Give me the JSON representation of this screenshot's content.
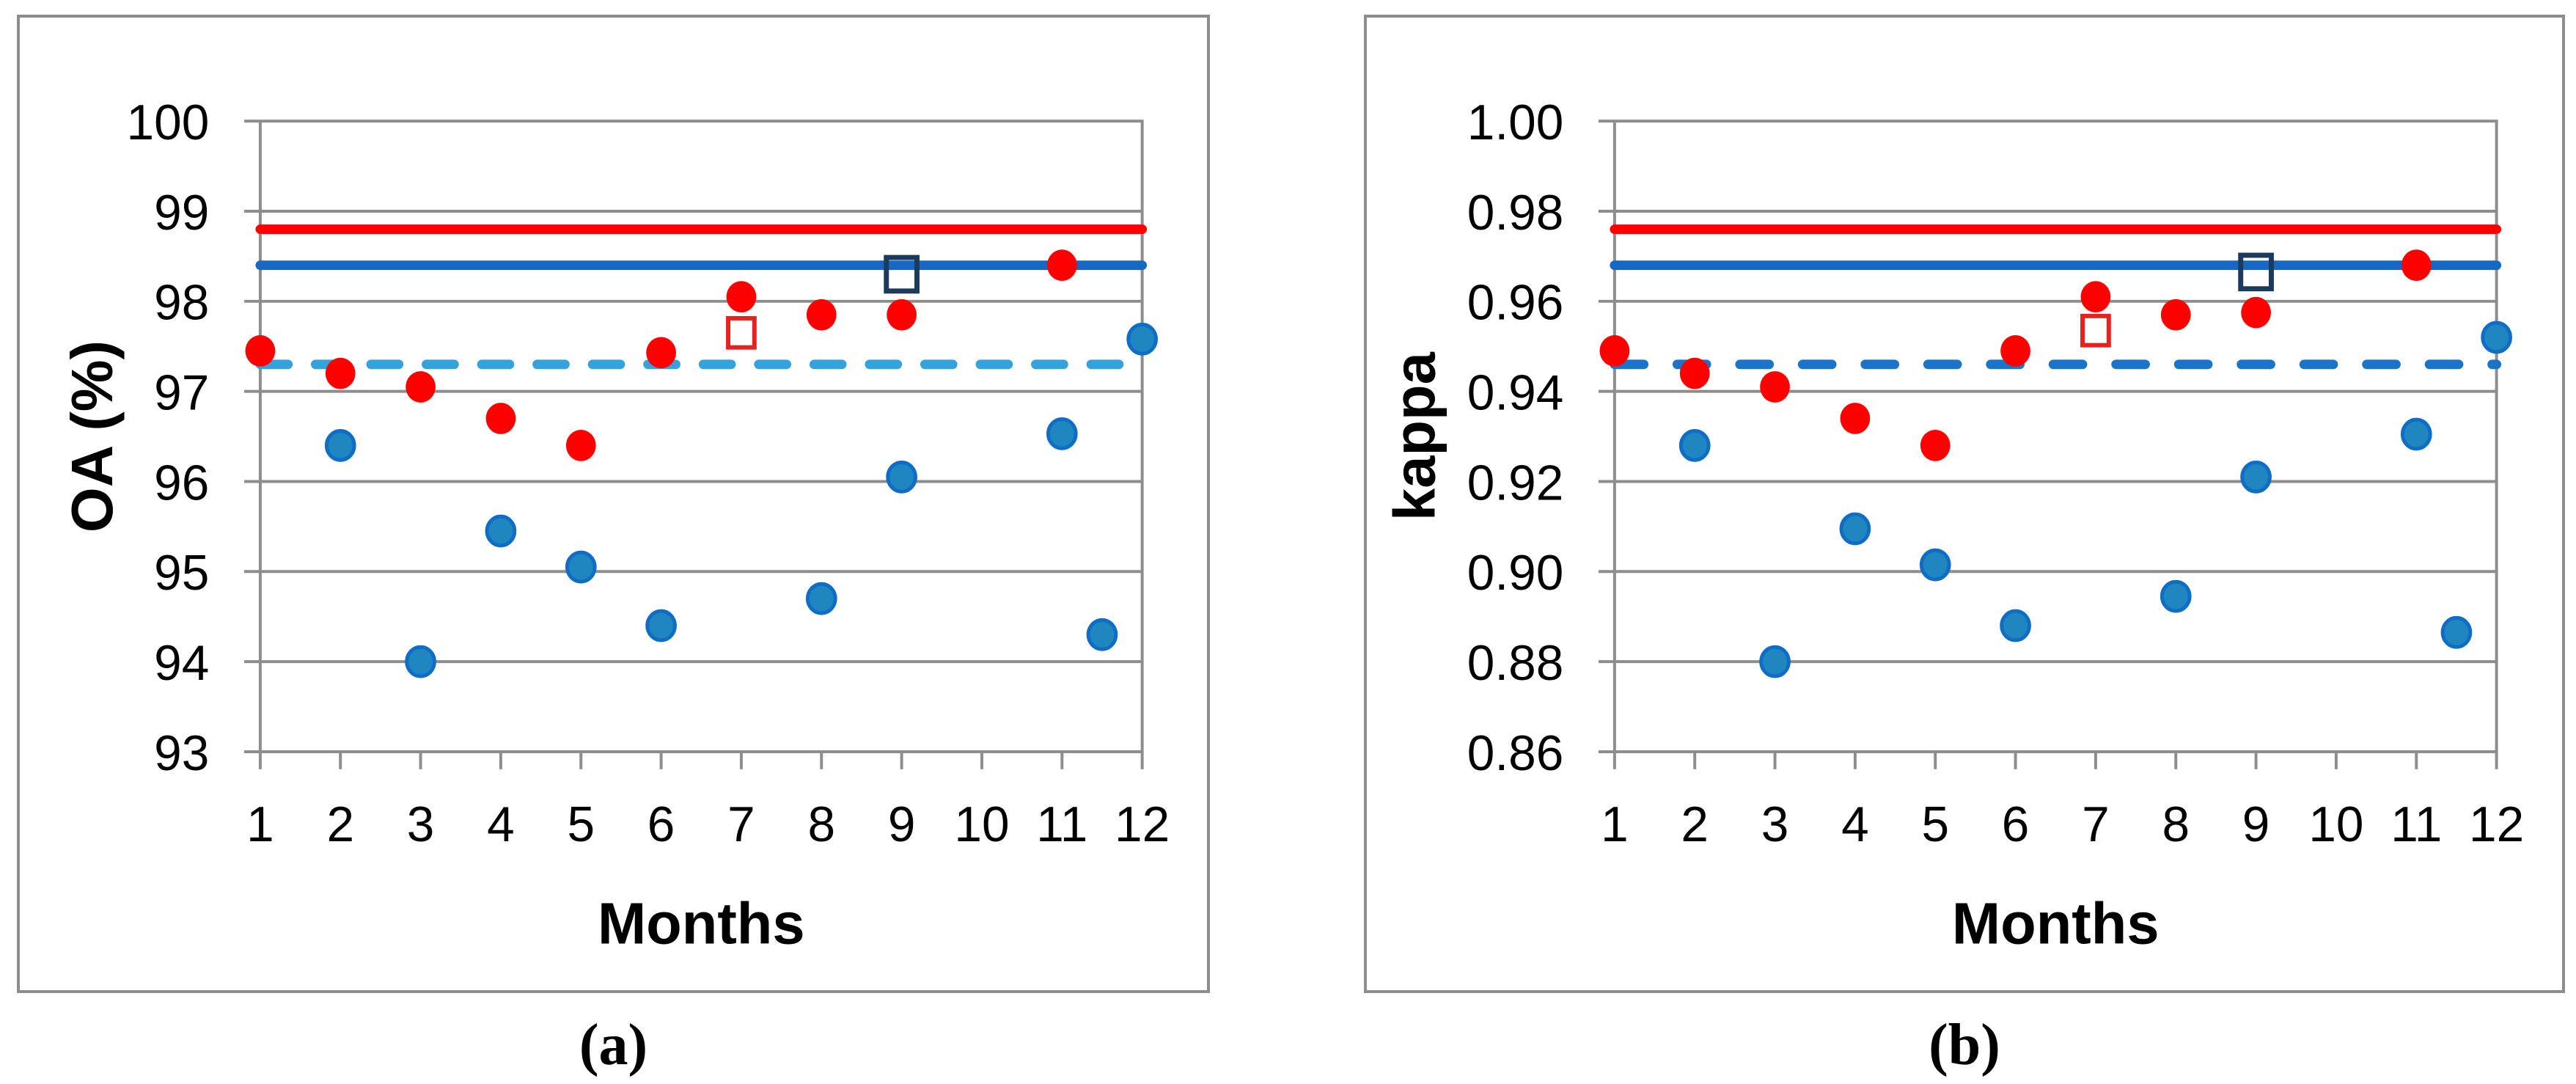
{
  "figure": {
    "captions": {
      "a": "(a)",
      "b": "(b)"
    }
  },
  "colors": {
    "grid": "#8d8d8d",
    "axis": "#8d8d8d",
    "panel_border": "#8d8d8d",
    "red": "#fe0000",
    "blue_solid": "#1569c4",
    "light_blue_dashed": "#36a2dc",
    "blue_dashed": "#1b74c8",
    "blue_dot_fill": "#1f86bf",
    "blue_dot_stroke": "#0f6dc6",
    "navy_square": "#1c3a5e",
    "red_square": "#e8201e",
    "text": "#000000"
  },
  "chart_data": [
    {
      "id": "a",
      "type": "scatter",
      "xlabel": "Months",
      "ylabel": "OA (%)",
      "xlim": [
        1,
        12
      ],
      "ylim": [
        93,
        100
      ],
      "grid": "horizontal",
      "legend": "none",
      "xticks": [
        {
          "v": 1,
          "label": "1"
        },
        {
          "v": 2,
          "label": "2"
        },
        {
          "v": 3,
          "label": "3"
        },
        {
          "v": 4,
          "label": "4"
        },
        {
          "v": 5,
          "label": "5"
        },
        {
          "v": 6,
          "label": "6"
        },
        {
          "v": 7,
          "label": "7"
        },
        {
          "v": 8,
          "label": "8"
        },
        {
          "v": 9,
          "label": "9"
        },
        {
          "v": 10,
          "label": "10"
        },
        {
          "v": 11,
          "label": "11"
        },
        {
          "v": 12,
          "label": "12"
        }
      ],
      "yticks": [
        {
          "v": 93,
          "label": "93"
        },
        {
          "v": 94,
          "label": "94"
        },
        {
          "v": 95,
          "label": "95"
        },
        {
          "v": 96,
          "label": "96"
        },
        {
          "v": 97,
          "label": "97"
        },
        {
          "v": 98,
          "label": "98"
        },
        {
          "v": 99,
          "label": "99"
        },
        {
          "v": 100,
          "label": "100"
        }
      ],
      "hlines": [
        {
          "name": "red-solid-reference-line",
          "value": 98.8,
          "color_key": "red",
          "style": "solid"
        },
        {
          "name": "blue-solid-reference-line",
          "value": 98.4,
          "color_key": "blue_solid",
          "style": "solid"
        },
        {
          "name": "dashed-reference-line",
          "value": 97.3,
          "color_key": "light_blue_dashed",
          "style": "dashed"
        }
      ],
      "series": [
        {
          "name": "red-monthly-dots",
          "marker": "circle",
          "points": [
            [
              1,
              97.45
            ],
            [
              2,
              97.2
            ],
            [
              3,
              97.05
            ],
            [
              4,
              96.7
            ],
            [
              5,
              96.4
            ],
            [
              6,
              97.43
            ],
            [
              7,
              98.05
            ],
            [
              8,
              97.85
            ],
            [
              9,
              97.85
            ],
            [
              11,
              98.4
            ]
          ]
        },
        {
          "name": "blue-monthly-dots",
          "marker": "circle-outlined",
          "points": [
            [
              2,
              96.4
            ],
            [
              3,
              94.0
            ],
            [
              4,
              95.45
            ],
            [
              5,
              95.05
            ],
            [
              6,
              94.4
            ],
            [
              8,
              94.7
            ],
            [
              9,
              96.05
            ],
            [
              11,
              96.53
            ],
            [
              11.5,
              94.3
            ],
            [
              12,
              97.58
            ]
          ]
        },
        {
          "name": "red-open-square",
          "marker": "square-open-red",
          "points": [
            [
              7,
              97.65
            ]
          ]
        },
        {
          "name": "navy-open-square",
          "marker": "square-open-navy",
          "points": [
            [
              9,
              98.3
            ]
          ]
        }
      ]
    },
    {
      "id": "b",
      "type": "scatter",
      "xlabel": "Months",
      "ylabel": "kappa",
      "xlim": [
        1,
        12
      ],
      "ylim": [
        0.86,
        1.0
      ],
      "grid": "horizontal",
      "legend": "none",
      "xticks": [
        {
          "v": 1,
          "label": "1"
        },
        {
          "v": 2,
          "label": "2"
        },
        {
          "v": 3,
          "label": "3"
        },
        {
          "v": 4,
          "label": "4"
        },
        {
          "v": 5,
          "label": "5"
        },
        {
          "v": 6,
          "label": "6"
        },
        {
          "v": 7,
          "label": "7"
        },
        {
          "v": 8,
          "label": "8"
        },
        {
          "v": 9,
          "label": "9"
        },
        {
          "v": 10,
          "label": "10"
        },
        {
          "v": 11,
          "label": "11"
        },
        {
          "v": 12,
          "label": "12"
        }
      ],
      "yticks": [
        {
          "v": 0.86,
          "label": "0.86"
        },
        {
          "v": 0.88,
          "label": "0.88"
        },
        {
          "v": 0.9,
          "label": "0.90"
        },
        {
          "v": 0.92,
          "label": "0.92"
        },
        {
          "v": 0.94,
          "label": "0.94"
        },
        {
          "v": 0.96,
          "label": "0.96"
        },
        {
          "v": 0.98,
          "label": "0.98"
        },
        {
          "v": 1.0,
          "label": "1.00"
        }
      ],
      "hlines": [
        {
          "name": "red-solid-reference-line",
          "value": 0.976,
          "color_key": "red",
          "style": "solid"
        },
        {
          "name": "blue-solid-reference-line",
          "value": 0.968,
          "color_key": "blue_solid",
          "style": "solid"
        },
        {
          "name": "dashed-reference-line",
          "value": 0.946,
          "color_key": "blue_dashed",
          "style": "dashed"
        }
      ],
      "series": [
        {
          "name": "red-monthly-dots",
          "marker": "circle",
          "points": [
            [
              1,
              0.949
            ],
            [
              2,
              0.944
            ],
            [
              3,
              0.941
            ],
            [
              4,
              0.934
            ],
            [
              5,
              0.928
            ],
            [
              6,
              0.949
            ],
            [
              7,
              0.961
            ],
            [
              8,
              0.957
            ],
            [
              9,
              0.9575
            ],
            [
              11,
              0.968
            ]
          ]
        },
        {
          "name": "blue-monthly-dots",
          "marker": "circle-outlined",
          "points": [
            [
              2,
              0.928
            ],
            [
              3,
              0.88
            ],
            [
              4,
              0.9095
            ],
            [
              5,
              0.9015
            ],
            [
              6,
              0.888
            ],
            [
              8,
              0.8945
            ],
            [
              9,
              0.921
            ],
            [
              11,
              0.9305
            ],
            [
              11.5,
              0.8865
            ],
            [
              12,
              0.952
            ]
          ]
        },
        {
          "name": "red-open-square",
          "marker": "square-open-red",
          "points": [
            [
              7,
              0.9535
            ]
          ]
        },
        {
          "name": "navy-open-square",
          "marker": "square-open-navy",
          "points": [
            [
              9,
              0.9665
            ]
          ]
        }
      ]
    }
  ]
}
